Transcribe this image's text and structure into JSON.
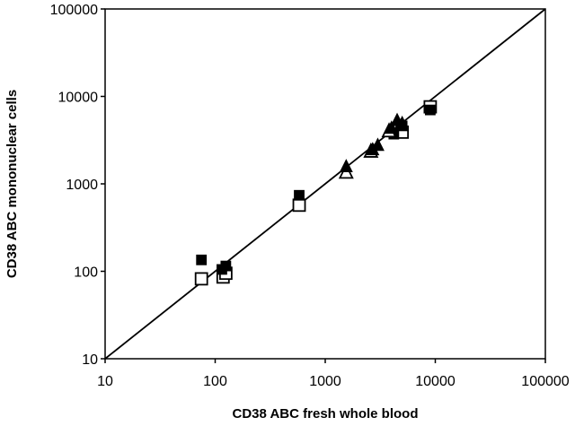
{
  "chart_data": {
    "type": "scatter",
    "title": "",
    "xlabel": "CD38 ABC fresh whole blood",
    "ylabel": "CD38 ABC mononuclear cells",
    "xscale": "log",
    "yscale": "log",
    "xlim": [
      10,
      100000
    ],
    "ylim": [
      10,
      100000
    ],
    "x_ticks": [
      "10",
      "100",
      "1000",
      "10000",
      "100000"
    ],
    "y_ticks": [
      "10",
      "100",
      "1000",
      "10000",
      "100000"
    ],
    "grid": false,
    "legend": "none",
    "identity_line": {
      "from": [
        10,
        10
      ],
      "to": [
        100000,
        100000
      ]
    },
    "series": [
      {
        "marker": "open-square",
        "points": [
          {
            "x": 75,
            "y": 82
          },
          {
            "x": 118,
            "y": 86
          },
          {
            "x": 125,
            "y": 95
          },
          {
            "x": 580,
            "y": 570
          },
          {
            "x": 5000,
            "y": 3900
          },
          {
            "x": 9000,
            "y": 7600
          }
        ]
      },
      {
        "marker": "filled-square",
        "points": [
          {
            "x": 75,
            "y": 135
          },
          {
            "x": 115,
            "y": 105
          },
          {
            "x": 125,
            "y": 115
          },
          {
            "x": 580,
            "y": 740
          },
          {
            "x": 4200,
            "y": 3700
          },
          {
            "x": 5000,
            "y": 4600
          },
          {
            "x": 9000,
            "y": 7000
          }
        ]
      },
      {
        "marker": "open-triangle",
        "points": [
          {
            "x": 1550,
            "y": 1380
          },
          {
            "x": 2600,
            "y": 2400
          },
          {
            "x": 3800,
            "y": 4100
          }
        ]
      },
      {
        "marker": "filled-triangle",
        "points": [
          {
            "x": 1550,
            "y": 1600
          },
          {
            "x": 2700,
            "y": 2500
          },
          {
            "x": 3000,
            "y": 2800
          },
          {
            "x": 4000,
            "y": 4400
          },
          {
            "x": 4500,
            "y": 5400
          },
          {
            "x": 5000,
            "y": 5000
          }
        ]
      }
    ]
  }
}
